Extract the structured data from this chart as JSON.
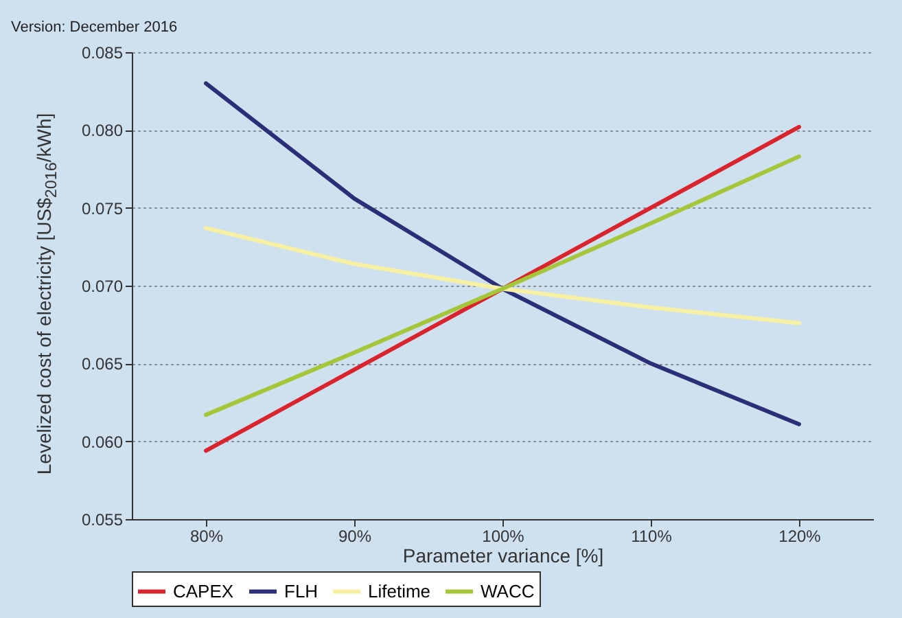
{
  "chart_data": {
    "type": "line",
    "xlabel": "Parameter variance [%]",
    "ylabel": "Levelized cost of electricity [US$$_{2016}$/kWh]",
    "annotations": [
      "Version: December 2016"
    ],
    "x": [
      80,
      90,
      100,
      110,
      120
    ],
    "series": [
      {
        "name": "CAPEX",
        "color": "#d9232d",
        "values": [
          0.0594,
          0.0646,
          0.0698,
          0.075,
          0.0802
        ]
      },
      {
        "name": "FLH",
        "color": "#2b2f78",
        "values": [
          0.083,
          0.0756,
          0.0698,
          0.065,
          0.0611
        ]
      },
      {
        "name": "Lifetime",
        "color": "#f7f0a2",
        "values": [
          0.0737,
          0.0714,
          0.0698,
          0.0686,
          0.0676
        ]
      },
      {
        "name": "WACC",
        "color": "#a6c63a",
        "values": [
          0.0617,
          0.0657,
          0.0698,
          0.074,
          0.0783
        ]
      }
    ],
    "xlim": [
      75,
      125
    ],
    "xticks": [
      {
        "value": 80,
        "label": "80%"
      },
      {
        "value": 90,
        "label": "90%"
      },
      {
        "value": 100,
        "label": "100%"
      },
      {
        "value": 110,
        "label": "110%"
      },
      {
        "value": 120,
        "label": "120%"
      }
    ],
    "ylim": [
      0.055,
      0.085
    ],
    "yticks": [
      {
        "value": 0.055,
        "label": "0.055"
      },
      {
        "value": 0.06,
        "label": "0.060"
      },
      {
        "value": 0.065,
        "label": "0.065"
      },
      {
        "value": 0.07,
        "label": "0.070"
      },
      {
        "value": 0.075,
        "label": "0.075"
      },
      {
        "value": 0.08,
        "label": "0.080"
      },
      {
        "value": 0.085,
        "label": "0.085"
      }
    ],
    "grid": "y",
    "legend": "bottom",
    "marker": "none",
    "line_style": "solid"
  }
}
